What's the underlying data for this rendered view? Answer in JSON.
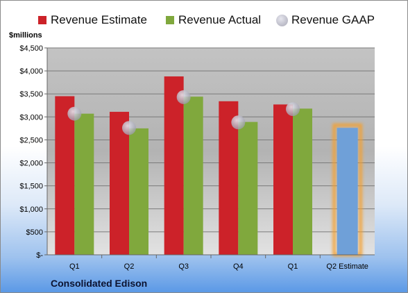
{
  "chart_data": {
    "type": "bar",
    "ylabel": "$millions",
    "ylim": [
      0,
      4500
    ],
    "yticks": [
      0,
      500,
      1000,
      1500,
      2000,
      2500,
      3000,
      3500,
      4000,
      4500
    ],
    "ytick_labels": [
      "$-",
      "$500",
      "$1,000",
      "$1,500",
      "$2,000",
      "$2,500",
      "$3,000",
      "$3,500",
      "$4,000",
      "$4,500"
    ],
    "categories": [
      "Q1",
      "Q2",
      "Q3",
      "Q4",
      "Q1",
      "Q2 Estimate"
    ],
    "series": [
      {
        "name": "Revenue Estimate",
        "type": "bar",
        "color": "#cc2229",
        "values": [
          3450,
          3110,
          3880,
          3340,
          3270,
          null
        ]
      },
      {
        "name": "Revenue Actual",
        "type": "bar",
        "color": "#80a83d",
        "values": [
          3070,
          2750,
          3440,
          2890,
          3180,
          null
        ]
      },
      {
        "name": "Revenue GAAP",
        "type": "marker",
        "color": "#b0b0c0",
        "values": [
          3070,
          2760,
          3430,
          2880,
          3170,
          null
        ]
      },
      {
        "name": "",
        "type": "bar",
        "color": "#6fa0d8",
        "highlight": "#f5a030",
        "values": [
          null,
          null,
          null,
          null,
          null,
          2760
        ]
      }
    ],
    "legend": "top",
    "grid": true,
    "company": "Consolidated Edison"
  }
}
